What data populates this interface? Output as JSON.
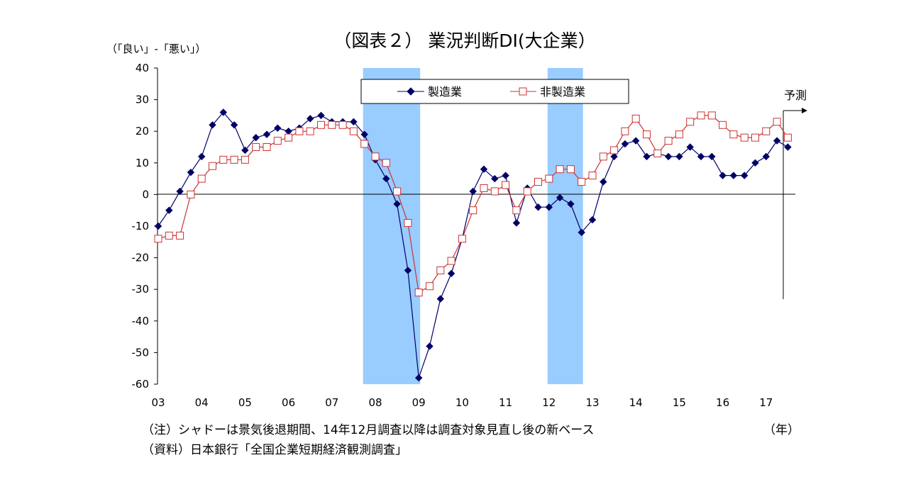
{
  "chart_data": {
    "type": "line",
    "title": "（図表２） 業況判断DI(大企業）",
    "ylabel": "（「良い」-「悪い」）",
    "xlabel_unit": "（年）",
    "ylim": [
      -60,
      40
    ],
    "yticks": [
      "40",
      "30",
      "20",
      "10",
      "0",
      "-10",
      "-20",
      "-30",
      "-40",
      "-50",
      "-60"
    ],
    "xlim": [
      2003,
      2017.5
    ],
    "xticks": [
      "03",
      "04",
      "05",
      "06",
      "07",
      "08",
      "09",
      "10",
      "11",
      "12",
      "13",
      "14",
      "15",
      "16",
      "17"
    ],
    "legend": {
      "placement": "top-center",
      "entries": [
        "製造業",
        "非製造業"
      ]
    },
    "forecast_label": "予測",
    "shaded_periods": [
      [
        2007.75,
        2009.0
      ],
      [
        2012.0,
        2012.75
      ]
    ],
    "series": [
      {
        "name": "製造業",
        "color": "#000066",
        "marker": "diamond",
        "x": [
          2003.0,
          2003.25,
          2003.5,
          2003.75,
          2004.0,
          2004.25,
          2004.5,
          2004.75,
          2005.0,
          2005.25,
          2005.5,
          2005.75,
          2006.0,
          2006.25,
          2006.5,
          2006.75,
          2007.0,
          2007.25,
          2007.5,
          2007.75,
          2008.0,
          2008.25,
          2008.5,
          2008.75,
          2009.0,
          2009.25,
          2009.5,
          2009.75,
          2010.0,
          2010.25,
          2010.5,
          2010.75,
          2011.0,
          2011.25,
          2011.5,
          2011.75,
          2012.0,
          2012.25,
          2012.5,
          2012.75,
          2013.0,
          2013.25,
          2013.5,
          2013.75,
          2014.0,
          2014.25,
          2014.5,
          2014.75,
          2015.0,
          2015.25,
          2015.5,
          2015.75,
          2016.0,
          2016.25,
          2016.5,
          2016.75,
          2017.0,
          2017.25,
          2017.5
        ],
        "values": [
          -10,
          -5,
          1,
          7,
          12,
          22,
          26,
          22,
          14,
          18,
          19,
          21,
          20,
          21,
          24,
          25,
          23,
          23,
          23,
          19,
          11,
          5,
          -3,
          -24,
          -58,
          -48,
          -33,
          -25,
          -14,
          1,
          8,
          5,
          6,
          -9,
          2,
          -4,
          -4,
          -1,
          -3,
          -12,
          -8,
          4,
          12,
          16,
          17,
          12,
          13,
          12,
          12,
          15,
          12,
          12,
          6,
          6,
          6,
          10,
          12,
          17,
          15
        ]
      },
      {
        "name": "非製造業",
        "color": "#cc3333",
        "marker": "square-open",
        "x": [
          2003.0,
          2003.25,
          2003.5,
          2003.75,
          2004.0,
          2004.25,
          2004.5,
          2004.75,
          2005.0,
          2005.25,
          2005.5,
          2005.75,
          2006.0,
          2006.25,
          2006.5,
          2006.75,
          2007.0,
          2007.25,
          2007.5,
          2007.75,
          2008.0,
          2008.25,
          2008.5,
          2008.75,
          2009.0,
          2009.25,
          2009.5,
          2009.75,
          2010.0,
          2010.25,
          2010.5,
          2010.75,
          2011.0,
          2011.25,
          2011.5,
          2011.75,
          2012.0,
          2012.25,
          2012.5,
          2012.75,
          2013.0,
          2013.25,
          2013.5,
          2013.75,
          2014.0,
          2014.25,
          2014.5,
          2014.75,
          2015.0,
          2015.25,
          2015.5,
          2015.75,
          2016.0,
          2016.25,
          2016.5,
          2016.75,
          2017.0,
          2017.25,
          2017.5
        ],
        "values": [
          -14,
          -13,
          -13,
          0,
          5,
          9,
          11,
          11,
          11,
          15,
          15,
          17,
          18,
          20,
          20,
          22,
          22,
          22,
          20,
          16,
          12,
          10,
          1,
          -9,
          -31,
          -29,
          -24,
          -21,
          -14,
          -5,
          2,
          1,
          3,
          -5,
          1,
          4,
          5,
          8,
          8,
          4,
          6,
          12,
          14,
          20,
          24,
          19,
          13,
          17,
          19,
          23,
          25,
          25,
          22,
          19,
          18,
          18,
          20,
          23,
          18
        ]
      }
    ]
  },
  "notes": [
    "（注）シャドーは景気後退期間、14年12月調査以降は調査対象見直し後の新ベース",
    "（資料）日本銀行「全国企業短期経済観測調査」"
  ]
}
